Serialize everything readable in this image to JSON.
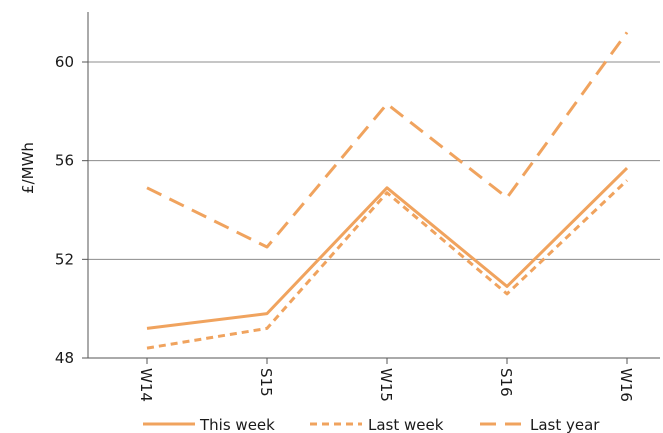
{
  "chart_data": {
    "type": "line",
    "title": "",
    "xlabel": "",
    "ylabel": "£/MWh",
    "categories": [
      "W14",
      "S15",
      "W15",
      "S16",
      "W16"
    ],
    "ylim": [
      48,
      62
    ],
    "yticks": [
      48,
      52,
      56,
      60
    ],
    "grid": true,
    "legend": "bottom",
    "series": [
      {
        "name": "This week",
        "values": [
          49.2,
          49.8,
          54.9,
          50.9,
          55.7
        ],
        "color": "#F0A35E",
        "style": "solid"
      },
      {
        "name": "Last week",
        "values": [
          48.4,
          49.2,
          54.7,
          50.6,
          55.2
        ],
        "color": "#F0A35E",
        "style": "dashed-short"
      },
      {
        "name": "Last year",
        "values": [
          54.9,
          52.5,
          58.3,
          54.5,
          61.2
        ],
        "color": "#F0A35E",
        "style": "dashed-long"
      }
    ]
  }
}
